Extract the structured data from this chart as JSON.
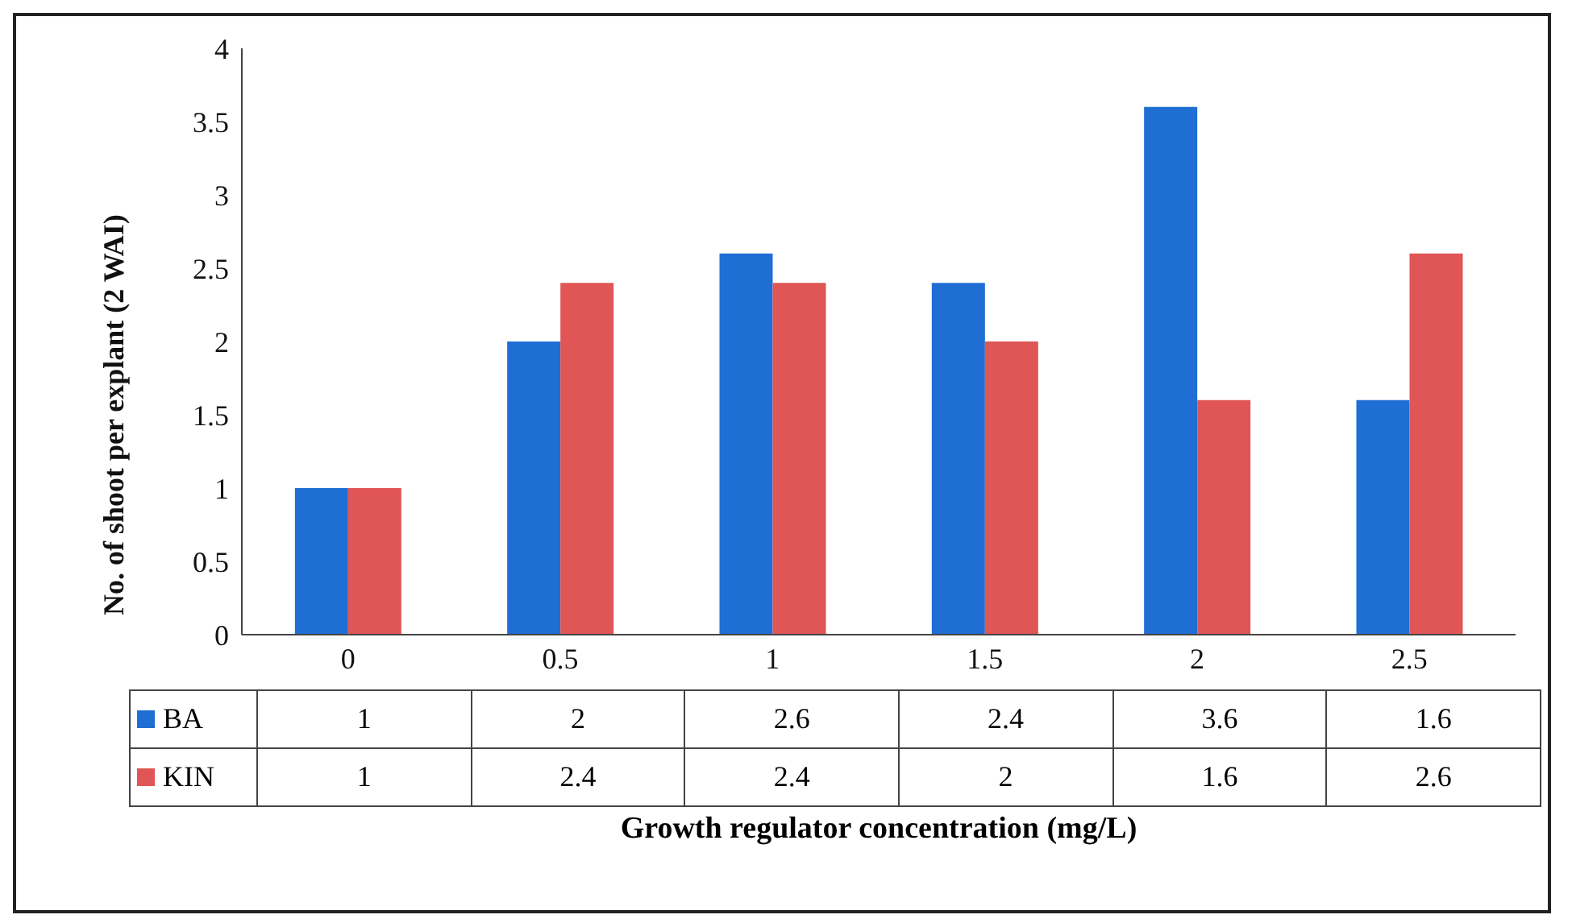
{
  "chart_data": {
    "type": "bar",
    "xlabel": "Growth regulator concentration (mg/L)",
    "ylabel": "No. of shoot per explant (2 WAI)",
    "categories": [
      "0",
      "0.5",
      "1",
      "1.5",
      "2",
      "2.5"
    ],
    "series": [
      {
        "name": "BA",
        "color": "#1f6ed4",
        "values": [
          1,
          2,
          2.6,
          2.4,
          3.6,
          1.6
        ]
      },
      {
        "name": "KIN",
        "color": "#e05555",
        "values": [
          1,
          2.4,
          2.4,
          2,
          1.6,
          2.6
        ]
      }
    ],
    "ylim": [
      0,
      4
    ],
    "yticks": [
      0,
      0.5,
      1,
      1.5,
      2,
      2.5,
      3,
      3.5,
      4
    ],
    "grid": false,
    "legend": "bottom",
    "data_labels": true
  }
}
